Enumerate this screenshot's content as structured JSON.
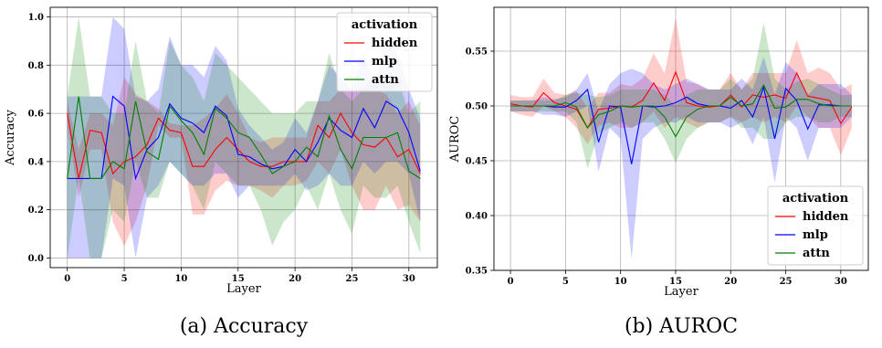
{
  "chart_data": [
    {
      "type": "line",
      "ylabel": "Accuracy",
      "xlabel": "Layer",
      "caption": "(a) Accuracy",
      "xlim": [
        -1.5,
        32.5
      ],
      "ylim": [
        -0.04,
        1.04
      ],
      "xticks": [
        0,
        5,
        10,
        15,
        20,
        25,
        30
      ],
      "yticks": [
        0.0,
        0.2,
        0.4,
        0.6,
        0.8,
        1.0
      ],
      "ytick_labels": [
        "0.0",
        "0.2",
        "0.4",
        "0.6",
        "0.8",
        "1.0"
      ],
      "grid": true,
      "legend": {
        "title": "activation",
        "position": "top-right"
      },
      "x": [
        0,
        1,
        2,
        3,
        4,
        5,
        6,
        7,
        8,
        9,
        10,
        11,
        12,
        13,
        14,
        15,
        16,
        17,
        18,
        19,
        20,
        21,
        22,
        23,
        24,
        25,
        26,
        27,
        28,
        29,
        30,
        31
      ],
      "series": [
        {
          "name": "hidden",
          "color": "#ff0000",
          "band_opacity": 0.2,
          "values": [
            0.6,
            0.33,
            0.53,
            0.52,
            0.35,
            0.4,
            0.42,
            0.47,
            0.58,
            0.53,
            0.52,
            0.38,
            0.38,
            0.45,
            0.5,
            0.45,
            0.4,
            0.38,
            0.38,
            0.4,
            0.4,
            0.4,
            0.55,
            0.5,
            0.6,
            0.52,
            0.47,
            0.46,
            0.5,
            0.42,
            0.45,
            0.35
          ],
          "lower": [
            0.55,
            0.25,
            0.45,
            0.45,
            0.15,
            0.05,
            0.15,
            0.3,
            0.55,
            0.5,
            0.5,
            0.18,
            0.18,
            0.28,
            0.32,
            0.3,
            0.3,
            0.28,
            0.25,
            0.3,
            0.3,
            0.32,
            0.4,
            0.35,
            0.45,
            0.3,
            0.2,
            0.2,
            0.3,
            0.2,
            0.22,
            0.15
          ],
          "upper": [
            0.65,
            0.45,
            0.6,
            0.6,
            0.55,
            0.75,
            0.68,
            0.65,
            0.62,
            0.56,
            0.55,
            0.55,
            0.58,
            0.62,
            0.68,
            0.6,
            0.5,
            0.48,
            0.5,
            0.5,
            0.5,
            0.5,
            0.65,
            0.65,
            0.7,
            0.7,
            0.7,
            0.7,
            0.68,
            0.6,
            0.65,
            0.55
          ]
        },
        {
          "name": "mlp",
          "color": "#0000ff",
          "band_opacity": 0.2,
          "values": [
            0.33,
            0.33,
            0.33,
            0.33,
            0.67,
            0.63,
            0.33,
            0.45,
            0.5,
            0.64,
            0.58,
            0.56,
            0.52,
            0.63,
            0.59,
            0.43,
            0.42,
            0.39,
            0.37,
            0.38,
            0.45,
            0.4,
            0.48,
            0.58,
            0.53,
            0.5,
            0.62,
            0.54,
            0.65,
            0.62,
            0.52,
            0.36
          ],
          "lower": [
            0.0,
            0.0,
            0.0,
            0.0,
            0.33,
            0.3,
            0.0,
            0.25,
            0.3,
            0.4,
            0.35,
            0.3,
            0.3,
            0.35,
            0.35,
            0.25,
            0.3,
            0.3,
            0.3,
            0.3,
            0.35,
            0.28,
            0.3,
            0.35,
            0.3,
            0.3,
            0.4,
            0.35,
            0.4,
            0.4,
            0.35,
            0.15
          ],
          "upper": [
            0.67,
            0.67,
            0.67,
            0.67,
            1.0,
            0.95,
            0.67,
            0.65,
            0.7,
            0.92,
            0.8,
            0.8,
            0.75,
            0.88,
            0.82,
            0.62,
            0.55,
            0.5,
            0.45,
            0.48,
            0.58,
            0.52,
            0.65,
            0.8,
            0.75,
            0.7,
            0.85,
            0.72,
            0.9,
            0.85,
            0.7,
            0.58
          ]
        },
        {
          "name": "attn",
          "color": "#008000",
          "band_opacity": 0.2,
          "values": [
            0.33,
            0.67,
            0.33,
            0.33,
            0.4,
            0.37,
            0.65,
            0.44,
            0.41,
            0.63,
            0.57,
            0.52,
            0.43,
            0.62,
            0.58,
            0.52,
            0.5,
            0.43,
            0.35,
            0.38,
            0.4,
            0.46,
            0.42,
            0.59,
            0.45,
            0.37,
            0.5,
            0.5,
            0.5,
            0.52,
            0.36,
            0.33
          ],
          "lower": [
            0.0,
            0.33,
            0.0,
            0.0,
            0.2,
            0.15,
            0.4,
            0.25,
            0.25,
            0.4,
            0.35,
            0.3,
            0.2,
            0.4,
            0.35,
            0.3,
            0.3,
            0.2,
            0.05,
            0.15,
            0.2,
            0.3,
            0.2,
            0.35,
            0.2,
            0.1,
            0.3,
            0.25,
            0.25,
            0.3,
            0.15,
            0.02
          ],
          "upper": [
            0.67,
            1.0,
            0.67,
            0.67,
            0.6,
            0.6,
            0.9,
            0.65,
            0.6,
            0.9,
            0.8,
            0.75,
            0.65,
            0.85,
            0.8,
            0.75,
            0.7,
            0.65,
            0.6,
            0.6,
            0.6,
            0.65,
            0.65,
            0.85,
            0.7,
            0.65,
            0.7,
            0.75,
            0.75,
            0.75,
            0.6,
            0.65
          ]
        }
      ]
    },
    {
      "type": "line",
      "ylabel": "AUROC",
      "xlabel": "Layer",
      "caption": "(b) AUROC",
      "xlim": [
        -1.5,
        32.5
      ],
      "ylim": [
        0.35,
        0.59
      ],
      "xticks": [
        0,
        5,
        10,
        15,
        20,
        25,
        30
      ],
      "yticks": [
        0.35,
        0.4,
        0.45,
        0.5,
        0.55
      ],
      "ytick_labels": [
        "0.35",
        "0.40",
        "0.45",
        "0.50",
        "0.55"
      ],
      "grid": true,
      "legend": {
        "title": "activation",
        "position": "bottom-right"
      },
      "x": [
        0,
        1,
        2,
        3,
        4,
        5,
        6,
        7,
        8,
        9,
        10,
        11,
        12,
        13,
        14,
        15,
        16,
        17,
        18,
        19,
        20,
        21,
        22,
        23,
        24,
        25,
        26,
        27,
        28,
        29,
        30,
        31
      ],
      "series": [
        {
          "name": "hidden",
          "color": "#ff0000",
          "band_opacity": 0.2,
          "values": [
            0.502,
            0.5,
            0.499,
            0.512,
            0.503,
            0.5,
            0.497,
            0.48,
            0.497,
            0.498,
            0.5,
            0.499,
            0.505,
            0.521,
            0.505,
            0.531,
            0.503,
            0.5,
            0.499,
            0.5,
            0.51,
            0.499,
            0.51,
            0.508,
            0.51,
            0.507,
            0.53,
            0.509,
            0.507,
            0.505,
            0.484,
            0.499
          ],
          "lower": [
            0.495,
            0.492,
            0.49,
            0.5,
            0.495,
            0.49,
            0.48,
            0.465,
            0.482,
            0.485,
            0.48,
            0.48,
            0.485,
            0.495,
            0.48,
            0.49,
            0.485,
            0.48,
            0.485,
            0.485,
            0.49,
            0.485,
            0.49,
            0.485,
            0.49,
            0.485,
            0.5,
            0.49,
            0.48,
            0.48,
            0.455,
            0.48
          ],
          "upper": [
            0.51,
            0.508,
            0.508,
            0.525,
            0.512,
            0.51,
            0.514,
            0.498,
            0.512,
            0.512,
            0.52,
            0.518,
            0.525,
            0.548,
            0.53,
            0.58,
            0.522,
            0.52,
            0.515,
            0.515,
            0.53,
            0.515,
            0.53,
            0.53,
            0.53,
            0.53,
            0.56,
            0.53,
            0.535,
            0.53,
            0.515,
            0.52
          ]
        },
        {
          "name": "mlp",
          "color": "#0000ff",
          "band_opacity": 0.2,
          "values": [
            0.5,
            0.5,
            0.5,
            0.5,
            0.499,
            0.499,
            0.505,
            0.515,
            0.467,
            0.5,
            0.499,
            0.447,
            0.5,
            0.499,
            0.5,
            0.503,
            0.508,
            0.502,
            0.5,
            0.5,
            0.498,
            0.505,
            0.49,
            0.517,
            0.47,
            0.516,
            0.505,
            0.479,
            0.501,
            0.501,
            0.5,
            0.5
          ],
          "lower": [
            0.495,
            0.495,
            0.495,
            0.492,
            0.492,
            0.49,
            0.495,
            0.5,
            0.44,
            0.48,
            0.47,
            0.36,
            0.47,
            0.48,
            0.485,
            0.485,
            0.49,
            0.485,
            0.485,
            0.485,
            0.48,
            0.485,
            0.465,
            0.49,
            0.43,
            0.49,
            0.48,
            0.45,
            0.48,
            0.48,
            0.48,
            0.49
          ],
          "upper": [
            0.505,
            0.505,
            0.505,
            0.508,
            0.506,
            0.508,
            0.515,
            0.53,
            0.495,
            0.52,
            0.53,
            0.534,
            0.53,
            0.52,
            0.515,
            0.52,
            0.525,
            0.52,
            0.515,
            0.515,
            0.515,
            0.525,
            0.515,
            0.545,
            0.51,
            0.54,
            0.53,
            0.51,
            0.52,
            0.52,
            0.52,
            0.51
          ]
        },
        {
          "name": "attn",
          "color": "#008000",
          "band_opacity": 0.2,
          "values": [
            0.5,
            0.5,
            0.5,
            0.5,
            0.5,
            0.503,
            0.499,
            0.48,
            0.492,
            0.495,
            0.5,
            0.499,
            0.5,
            0.5,
            0.49,
            0.472,
            0.49,
            0.497,
            0.5,
            0.5,
            0.508,
            0.5,
            0.502,
            0.519,
            0.498,
            0.499,
            0.506,
            0.506,
            0.502,
            0.5,
            0.5,
            0.5
          ],
          "lower": [
            0.495,
            0.495,
            0.495,
            0.495,
            0.495,
            0.495,
            0.485,
            0.443,
            0.475,
            0.48,
            0.485,
            0.48,
            0.485,
            0.485,
            0.47,
            0.448,
            0.47,
            0.48,
            0.485,
            0.485,
            0.49,
            0.48,
            0.48,
            0.47,
            0.47,
            0.485,
            0.49,
            0.49,
            0.485,
            0.485,
            0.49,
            0.49
          ],
          "upper": [
            0.505,
            0.505,
            0.505,
            0.505,
            0.505,
            0.51,
            0.512,
            0.51,
            0.508,
            0.51,
            0.515,
            0.515,
            0.515,
            0.515,
            0.51,
            0.5,
            0.51,
            0.515,
            0.515,
            0.515,
            0.525,
            0.515,
            0.525,
            0.576,
            0.525,
            0.515,
            0.522,
            0.525,
            0.52,
            0.515,
            0.51,
            0.51
          ]
        }
      ]
    }
  ]
}
